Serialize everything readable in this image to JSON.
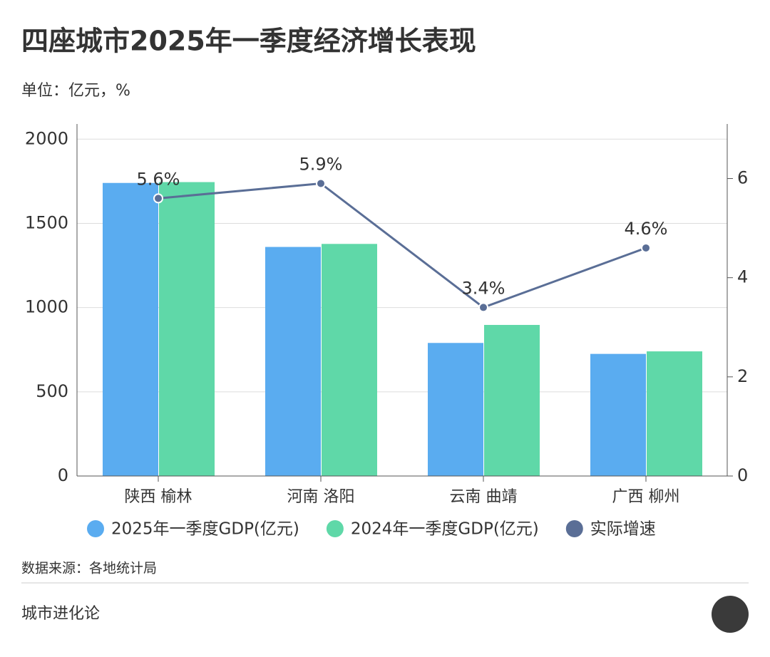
{
  "chart_data": {
    "type": "bar",
    "title": "四座城市2025年一季度经济增长表现",
    "subtitle": "单位：亿元，%",
    "categories": [
      "陕西 榆林",
      "河南 洛阳",
      "云南 曲靖",
      "广西 柳州"
    ],
    "series": [
      {
        "name": "2025年一季度GDP(亿元)",
        "color": "#5aacf0",
        "values": [
          1740,
          1360,
          790,
          725
        ]
      },
      {
        "name": "2024年一季度GDP(亿元)",
        "color": "#5fd8a8",
        "values": [
          1745,
          1378,
          897,
          740
        ]
      },
      {
        "name": "实际增速",
        "color": "#5a6e96",
        "type": "line",
        "axis": "y2",
        "values": [
          5.6,
          5.9,
          3.4,
          4.6
        ],
        "value_labels": [
          "5.6%",
          "5.9%",
          "3.4%",
          "4.6%"
        ]
      }
    ],
    "ylim": [
      0,
      2090
    ],
    "yticks": [
      0,
      500,
      1000,
      1500,
      2000
    ],
    "y2lim": [
      0,
      7.1
    ],
    "y2ticks": [
      0,
      2,
      4,
      6
    ],
    "grid": true,
    "legend": "bottom",
    "source": "数据来源：各地统计局",
    "footer": "城市进化论"
  }
}
